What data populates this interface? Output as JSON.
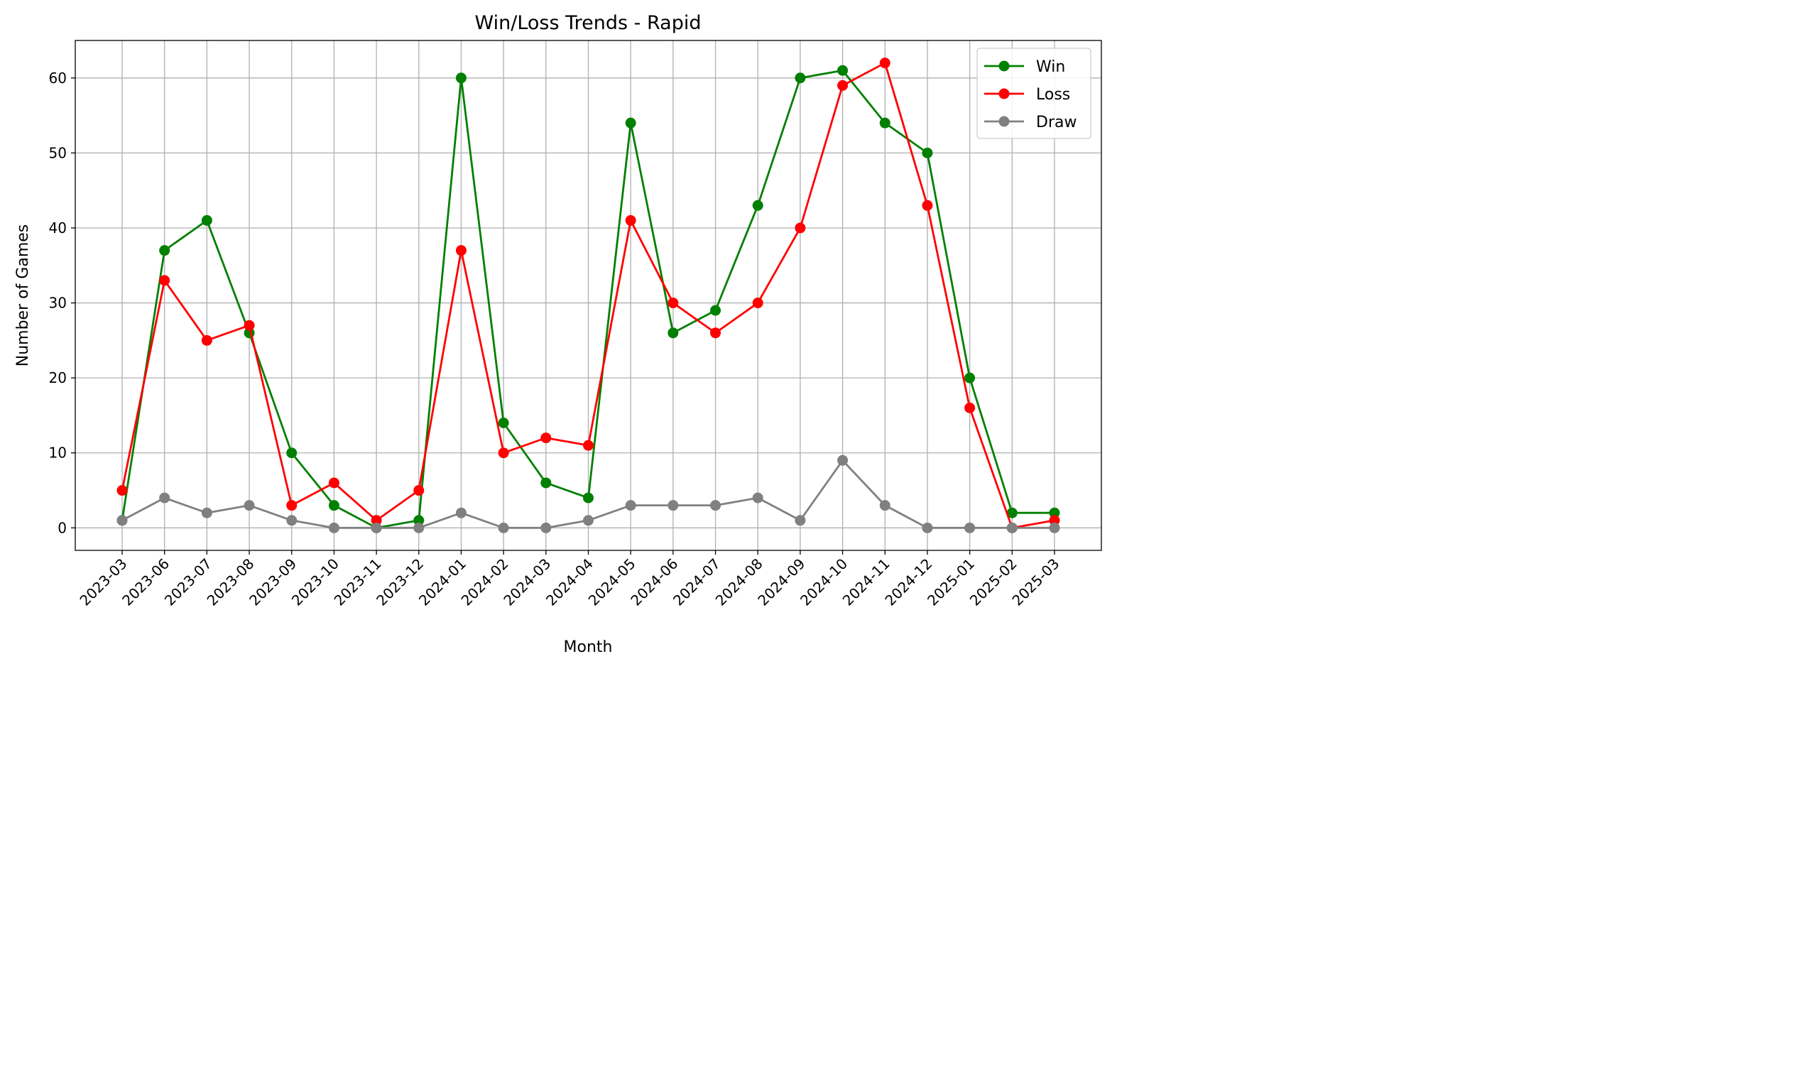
{
  "chart_data": {
    "type": "line",
    "title": "Win/Loss Trends - Rapid",
    "xlabel": "Month",
    "ylabel": "Number of Games",
    "x": [
      "2023-03",
      "2023-06",
      "2023-07",
      "2023-08",
      "2023-09",
      "2023-10",
      "2023-11",
      "2023-12",
      "2024-01",
      "2024-02",
      "2024-03",
      "2024-04",
      "2024-05",
      "2024-06",
      "2024-07",
      "2024-08",
      "2024-09",
      "2024-10",
      "2024-11",
      "2024-12",
      "2025-01",
      "2025-02",
      "2025-03"
    ],
    "ylim": [
      -3,
      65
    ],
    "yticks": [
      0,
      10,
      20,
      30,
      40,
      50,
      60
    ],
    "grid": true,
    "legend_position": "top-right",
    "series": [
      {
        "name": "Win",
        "color": "#008000",
        "values": [
          1,
          37,
          41,
          26,
          10,
          3,
          0,
          1,
          60,
          14,
          6,
          4,
          54,
          26,
          29,
          43,
          60,
          61,
          54,
          50,
          20,
          2,
          2
        ]
      },
      {
        "name": "Loss",
        "color": "#ff0000",
        "values": [
          5,
          33,
          25,
          27,
          3,
          6,
          1,
          5,
          37,
          10,
          12,
          11,
          41,
          30,
          26,
          30,
          40,
          59,
          62,
          43,
          16,
          0,
          1
        ]
      },
      {
        "name": "Draw",
        "color": "#808080",
        "values": [
          1,
          4,
          2,
          3,
          1,
          0,
          0,
          0,
          2,
          0,
          0,
          1,
          3,
          3,
          3,
          4,
          1,
          9,
          3,
          0,
          0,
          0,
          0
        ]
      }
    ]
  }
}
